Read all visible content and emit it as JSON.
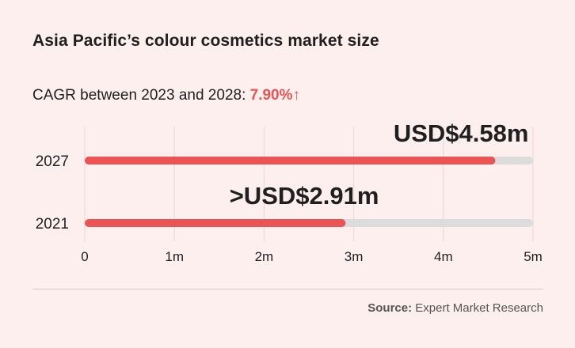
{
  "title": "Asia Pacific’s colour cosmetics market size",
  "subtitle": {
    "prefix": "CAGR between 2023 and 2028:",
    "value": "7.90%",
    "arrow": "↑"
  },
  "source": {
    "label": "Source:",
    "text": "Expert Market Research"
  },
  "colors": {
    "accent": "#ea5455",
    "track": "#dcdcdc",
    "grid": "#e6d5d4",
    "background": "#fdefee",
    "text": "#1f1f1f"
  },
  "chart_data": {
    "type": "bar",
    "orientation": "horizontal",
    "categories": [
      "2027",
      "2021"
    ],
    "values": [
      4.58,
      2.91
    ],
    "data_labels": [
      "USD$4.58m",
      ">USD$2.91m"
    ],
    "xlim": [
      0,
      5
    ],
    "x_ticks": [
      0,
      1,
      2,
      3,
      4,
      5
    ],
    "x_tick_labels": [
      "0",
      "1m",
      "2m",
      "3m",
      "4m",
      "5m"
    ],
    "grid": true,
    "legend": "none"
  }
}
